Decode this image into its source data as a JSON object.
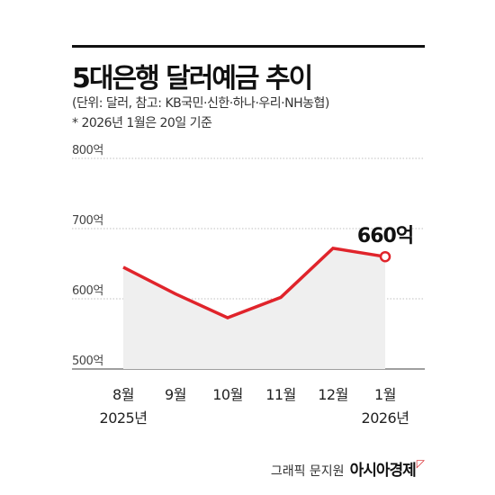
{
  "header": {
    "title": "5대은행 달러예금 추이",
    "unit_note": "(단위: 달러, 참고: KB국민·신한·하나·우리·NH농협)",
    "date_note": "* 2026년 1월은 20일 기준"
  },
  "colors": {
    "line": "#e0242b",
    "area": "#efefef",
    "grid": "#aaaaaa",
    "axis": "#666666"
  },
  "chart_data": {
    "type": "area",
    "title": "5대은행 달러예금 추이",
    "categories": [
      "8월",
      "9월",
      "10월",
      "11월",
      "12월",
      "1월"
    ],
    "year_labels": [
      "2025년",
      "",
      "",
      "",
      "",
      "2026년"
    ],
    "y_tick_labels": [
      "500억",
      "600억",
      "700억",
      "800억"
    ],
    "y_ticks": [
      500,
      600,
      700,
      800
    ],
    "ylim": [
      500,
      800
    ],
    "grid": true,
    "series": [
      {
        "values": [
          645,
          607,
          573,
          602,
          672,
          660
        ]
      }
    ],
    "annotation": {
      "index": 5,
      "label": "660억"
    }
  },
  "footer": {
    "credit": "그래픽 문지원",
    "brand": "아시아경제"
  }
}
